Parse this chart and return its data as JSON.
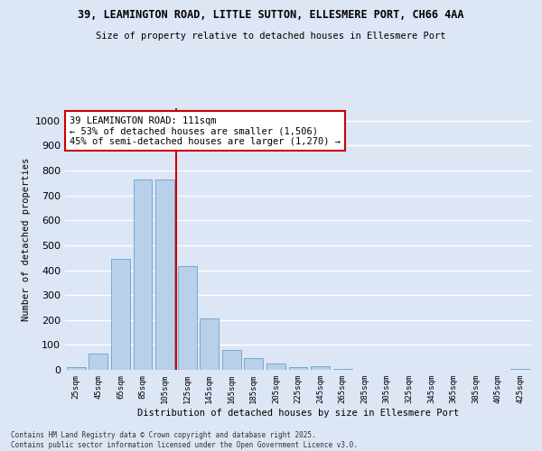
{
  "title_line1": "39, LEAMINGTON ROAD, LITTLE SUTTON, ELLESMERE PORT, CH66 4AA",
  "title_line2": "Size of property relative to detached houses in Ellesmere Port",
  "xlabel": "Distribution of detached houses by size in Ellesmere Port",
  "ylabel": "Number of detached properties",
  "bar_labels": [
    "25sqm",
    "45sqm",
    "65sqm",
    "85sqm",
    "105sqm",
    "125sqm",
    "145sqm",
    "165sqm",
    "185sqm",
    "205sqm",
    "225sqm",
    "245sqm",
    "265sqm",
    "285sqm",
    "305sqm",
    "325sqm",
    "345sqm",
    "365sqm",
    "385sqm",
    "405sqm",
    "425sqm"
  ],
  "bar_values": [
    10,
    65,
    447,
    765,
    765,
    415,
    205,
    78,
    47,
    27,
    10,
    13,
    5,
    0,
    0,
    0,
    0,
    0,
    0,
    0,
    4
  ],
  "bar_color": "#b8d0ea",
  "bar_edgecolor": "#6aa0cc",
  "property_line_x": 4.5,
  "annotation_text": "39 LEAMINGTON ROAD: 111sqm\n← 53% of detached houses are smaller (1,506)\n45% of semi-detached houses are larger (1,270) →",
  "annotation_box_color": "#ffffff",
  "annotation_box_edgecolor": "#cc0000",
  "vline_color": "#cc0000",
  "ylim": [
    0,
    1050
  ],
  "yticks": [
    0,
    100,
    200,
    300,
    400,
    500,
    600,
    700,
    800,
    900,
    1000
  ],
  "bg_color": "#dce6f5",
  "fig_color": "#dce6f5",
  "grid_color": "#ffffff",
  "footer_line1": "Contains HM Land Registry data © Crown copyright and database right 2025.",
  "footer_line2": "Contains public sector information licensed under the Open Government Licence v3.0."
}
